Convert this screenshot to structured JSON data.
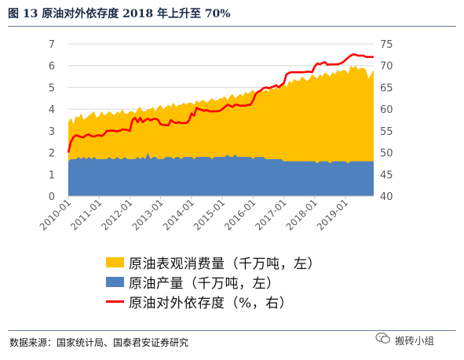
{
  "title": "图 13 原油对外依存度 2018 年上升至 70%",
  "source": "数据来源：国家统计局、国泰君安证券研究",
  "watermark": "搬砖小组",
  "colors": {
    "consumption": "#FFC000",
    "production": "#4E81BD",
    "dependence": "#FF0000",
    "axis_text": "#595959",
    "gridline": "#D9D9D9"
  },
  "chart_data": {
    "type": "area",
    "x_tick_labels": [
      "2010-01",
      "2011-01",
      "2012-01",
      "2013-01",
      "2014-01",
      "2015-01",
      "2016-01",
      "2017-01",
      "2018-01",
      "2019-01"
    ],
    "y_left": {
      "ylim": [
        0,
        7
      ],
      "ticks": [
        0,
        1,
        2,
        3,
        4,
        5,
        6,
        7
      ]
    },
    "y_right": {
      "ylim": [
        40,
        75
      ],
      "ticks": [
        40,
        45,
        50,
        55,
        60,
        65,
        70,
        75
      ]
    },
    "grid": true,
    "start": "2010-01",
    "series": [
      {
        "name": "原油表观消费量（千万吨，左）",
        "axis": "left",
        "type": "area",
        "values": [
          3.4,
          3.6,
          3.3,
          3.7,
          3.6,
          3.8,
          3.5,
          3.6,
          3.7,
          3.8,
          3.9,
          3.6,
          3.7,
          3.9,
          3.7,
          3.8,
          3.9,
          3.8,
          3.7,
          3.9,
          3.8,
          4.0,
          3.8,
          3.8,
          3.9,
          3.9,
          3.8,
          4.0,
          4.1,
          3.9,
          3.9,
          4.0,
          4.0,
          4.1,
          3.9,
          4.1,
          4.2,
          4.0,
          4.1,
          4.2,
          4.1,
          4.3,
          4.1,
          4.2,
          4.2,
          4.3,
          4.2,
          4.3,
          4.3,
          4.2,
          4.4,
          4.3,
          4.4,
          4.4,
          4.3,
          4.4,
          4.5,
          4.4,
          4.4,
          4.5,
          4.5,
          4.6,
          4.4,
          4.6,
          4.7,
          4.5,
          4.6,
          4.7,
          4.6,
          4.8,
          4.7,
          4.8,
          4.9,
          4.7,
          4.8,
          4.9,
          4.8,
          4.9,
          4.8,
          5.0,
          4.9,
          5.0,
          4.9,
          5.1,
          5.2,
          5.0,
          5.3,
          5.2,
          5.4,
          5.3,
          5.3,
          5.5,
          5.4,
          5.3,
          5.4,
          5.6,
          5.5,
          5.4,
          5.6,
          5.5,
          5.7,
          5.6,
          5.5,
          5.7,
          5.6,
          5.8,
          5.7,
          5.8,
          5.8,
          5.6,
          6.0,
          5.9,
          6.0,
          5.8,
          5.9,
          5.9,
          5.8,
          5.4,
          5.6,
          5.8
        ]
      },
      {
        "name": "原油产量（千万吨，左）",
        "axis": "left",
        "type": "area",
        "values": [
          1.6,
          1.7,
          1.7,
          1.7,
          1.8,
          1.7,
          1.8,
          1.7,
          1.8,
          1.7,
          1.8,
          1.7,
          1.7,
          1.7,
          1.7,
          1.7,
          1.8,
          1.7,
          1.7,
          1.8,
          1.7,
          1.7,
          1.8,
          1.7,
          1.7,
          1.7,
          1.7,
          1.8,
          1.7,
          1.8,
          1.7,
          2.0,
          1.7,
          1.8,
          1.8,
          1.7,
          1.7,
          1.7,
          1.8,
          1.8,
          1.8,
          1.7,
          1.8,
          1.8,
          1.7,
          1.8,
          1.8,
          1.8,
          1.8,
          1.7,
          1.8,
          1.8,
          1.8,
          1.8,
          1.8,
          1.8,
          1.7,
          1.8,
          1.8,
          1.8,
          1.8,
          1.8,
          1.9,
          1.8,
          1.8,
          1.9,
          1.8,
          1.8,
          1.8,
          1.8,
          1.8,
          1.8,
          1.7,
          1.8,
          1.8,
          1.8,
          1.8,
          1.7,
          1.7,
          1.7,
          1.7,
          1.7,
          1.7,
          1.7,
          1.6,
          1.6,
          1.6,
          1.6,
          1.6,
          1.6,
          1.6,
          1.6,
          1.6,
          1.6,
          1.6,
          1.6,
          1.6,
          1.5,
          1.6,
          1.6,
          1.6,
          1.6,
          1.5,
          1.6,
          1.6,
          1.6,
          1.6,
          1.6,
          1.6,
          1.5,
          1.6,
          1.6,
          1.6,
          1.6,
          1.6,
          1.6,
          1.6,
          1.6,
          1.6,
          1.6
        ]
      },
      {
        "name": "原油对外依存度（%，右）",
        "axis": "right",
        "type": "line",
        "values": [
          50.0,
          52.5,
          53.5,
          54.0,
          53.8,
          53.6,
          53.5,
          54.0,
          54.2,
          53.8,
          53.7,
          53.9,
          54.0,
          53.8,
          54.2,
          55.0,
          55.0,
          55.1,
          55.0,
          54.9,
          55.0,
          55.3,
          55.3,
          55.2,
          55.0,
          57.5,
          58.0,
          57.0,
          58.0,
          57.0,
          57.5,
          57.8,
          57.4,
          57.7,
          57.8,
          57.5,
          56.5,
          56.4,
          56.3,
          56.3,
          57.5,
          57.0,
          56.8,
          57.0,
          56.8,
          56.8,
          56.8,
          57.3,
          59.0,
          58.5,
          60.3,
          60.0,
          59.8,
          59.6,
          59.8,
          59.5,
          59.5,
          59.5,
          59.5,
          59.6,
          60.0,
          60.5,
          61.0,
          60.8,
          60.5,
          61.0,
          61.0,
          60.8,
          60.8,
          60.8,
          61.0,
          61.0,
          62.0,
          63.5,
          64.0,
          64.3,
          64.8,
          65.0,
          64.8,
          65.0,
          65.2,
          65.5,
          65.0,
          65.6,
          66.0,
          68.0,
          68.3,
          68.5,
          68.5,
          68.5,
          68.5,
          68.5,
          68.5,
          68.6,
          68.6,
          68.5,
          69.8,
          70.5,
          70.3,
          70.6,
          70.8,
          70.2,
          70.3,
          70.3,
          70.3,
          70.3,
          70.5,
          70.8,
          71.3,
          71.8,
          72.3,
          72.6,
          72.5,
          72.3,
          72.3,
          72.3,
          72.0,
          72.0,
          72.0,
          72.0
        ]
      }
    ]
  }
}
